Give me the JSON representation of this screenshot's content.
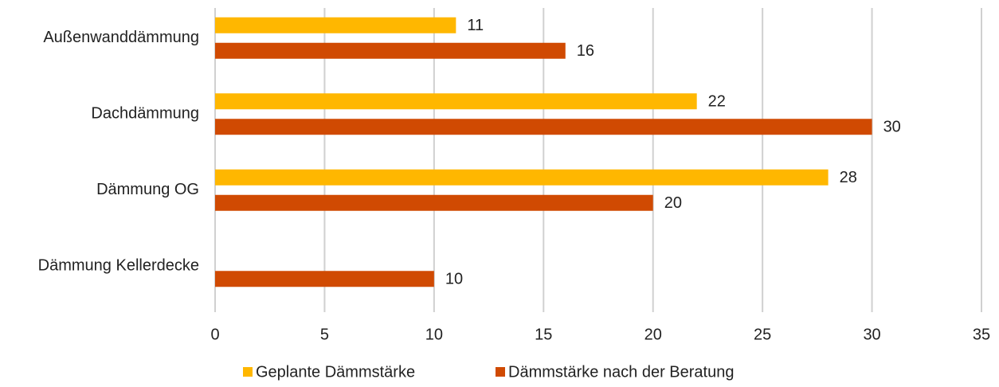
{
  "chart_data": {
    "type": "barh",
    "categories": [
      "Außenwanddämmung",
      "Dachdämmung",
      "Dämmung OG",
      "Dämmung Kellerdecke"
    ],
    "series": [
      {
        "name": "Geplante Dämmstärke",
        "color": "#ffb700",
        "values": [
          11,
          22,
          28,
          null
        ]
      },
      {
        "name": "Dämmstärke nach der Beratung",
        "color": "#d04a02",
        "values": [
          16,
          30,
          20,
          10
        ]
      }
    ],
    "xlim": [
      0,
      35
    ],
    "xticks": [
      0,
      5,
      10,
      15,
      20,
      25,
      30,
      35
    ],
    "grid": true,
    "legend": "bottom"
  }
}
